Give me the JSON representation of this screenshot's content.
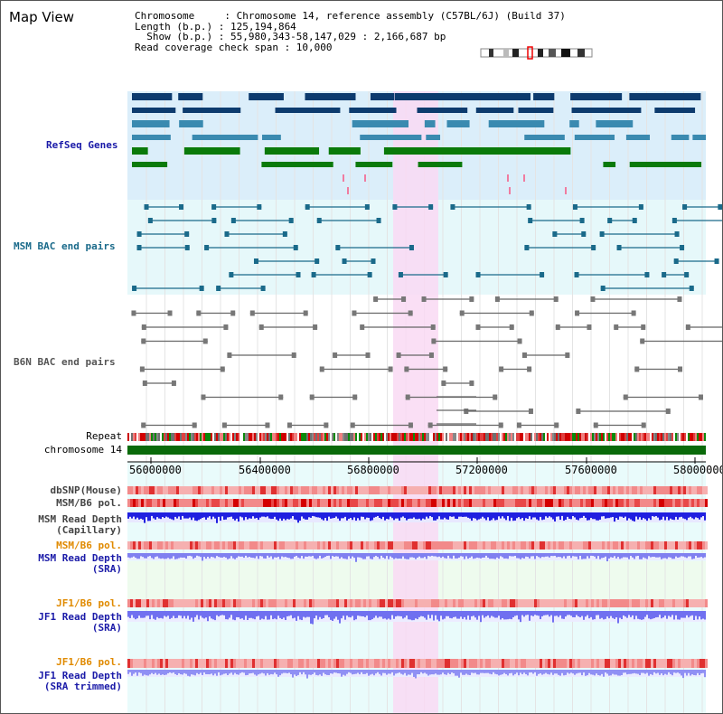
{
  "title": "Map View",
  "info": {
    "chromosome": "Chromosome     : Chromosome 14, reference assembly (C57BL/6J) (Build 37)",
    "length": "Length (b.p.) : 125,194,864",
    "show": "  Show (b.p.) : 55,980,343-58,147,029 : 2,166,687 bp",
    "coverage": "Read coverage check span : 10,000"
  },
  "tracks": {
    "refseq": "RefSeq Genes",
    "msm_bac": "MSM BAC end pairs",
    "b6n_bac": "B6N BAC end pairs",
    "repeat": "Repeat",
    "chromosome": "chromosome 14",
    "dbsnp": "dbSNP(Mouse)",
    "msm_b6_pol": "MSM/B6 pol.",
    "msm_depth_cap1": "MSM Read Depth",
    "msm_depth_cap2": "(Capillary)",
    "msm_b6_pol_sra": "MSM/B6 pol.",
    "msm_depth_sra1": "MSM Read Depth",
    "msm_depth_sra2": "(SRA)",
    "jf1_b6_pol": "JF1/B6 pol.",
    "jf1_depth1": "JF1 Read Depth",
    "jf1_depth2": "(SRA)",
    "jf1_b6_pol_trim": "JF1/B6 pol.",
    "jf1_trim1": "JF1 Read Depth",
    "jf1_trim2": "(SRA trimmed)"
  },
  "axis": {
    "ticks": [
      "56000000",
      "56400000",
      "56800000",
      "57200000",
      "57600000",
      "58000000"
    ]
  },
  "colors": {
    "refseq_label": "#1a1aa8",
    "msm_label": "#1a6a8a",
    "b6n_label": "#444444",
    "orange_label": "#e08a00",
    "blue_label": "#1a1aa8",
    "highlight": "#f9d9f3"
  }
}
